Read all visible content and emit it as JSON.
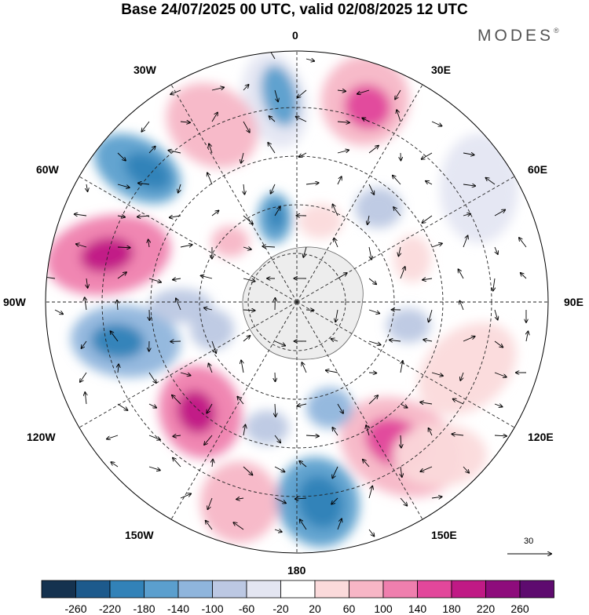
{
  "title": "Base 24/07/2025 00 UTC, valid 02/08/2025 12 UTC",
  "brand": {
    "name": "MODES",
    "mark": "®"
  },
  "longitude_labels": {
    "lon_0": "0",
    "lon_30e": "30E",
    "lon_60e": "60E",
    "lon_90e": "90E",
    "lon_120e": "120E",
    "lon_150e": "150E",
    "lon_180": "180",
    "lon_150w": "150W",
    "lon_120w": "120W",
    "lon_90w": "90W",
    "lon_60w": "60W",
    "lon_30w": "30W"
  },
  "reference_vector": {
    "value": "30"
  },
  "colorbar": {
    "ticks": [
      "-260",
      "-220",
      "-180",
      "-140",
      "-100",
      "-60",
      "-20",
      "20",
      "60",
      "100",
      "140",
      "180",
      "220",
      "260"
    ],
    "colors": [
      "#15324f",
      "#1d5a8c",
      "#3282b8",
      "#5b9fce",
      "#8fb5dc",
      "#bcc8e3",
      "#e4e6f2",
      "#ffffff",
      "#fbdadb",
      "#f7b6c6",
      "#ef7fae",
      "#e2479b",
      "#c01a85",
      "#8e0c7c",
      "#5e0b6f"
    ]
  }
}
